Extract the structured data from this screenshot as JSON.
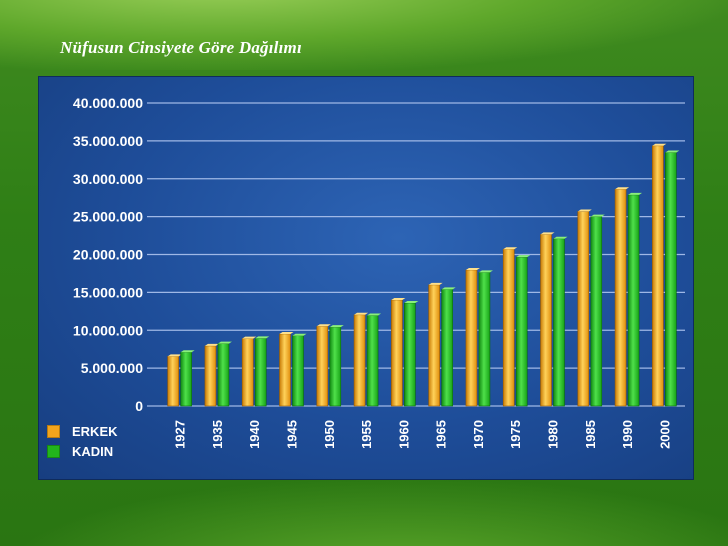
{
  "slide": {
    "title": "Nüfusun Cinsiyete Göre Dağılımı"
  },
  "colors": {
    "erkek": "#f2a41c",
    "kadin": "#22b51c",
    "gridline": "#9fb8e6",
    "text": "#ffffff"
  },
  "chart_data": {
    "type": "bar",
    "title": "",
    "xlabel": "",
    "ylabel": "",
    "categories": [
      "1927",
      "1935",
      "1940",
      "1945",
      "1950",
      "1955",
      "1960",
      "1965",
      "1970",
      "1975",
      "1980",
      "1985",
      "1990",
      "2000"
    ],
    "series": [
      {
        "name": "ERKEK",
        "values": [
          6550000,
          7930000,
          8900000,
          9510000,
          10520000,
          12040000,
          14000000,
          15990000,
          17960000,
          20700000,
          22650000,
          25670000,
          28610000,
          34350000
        ]
      },
      {
        "name": "KADIN",
        "values": [
          7100000,
          8230000,
          8920000,
          9280000,
          10420000,
          11940000,
          13600000,
          15400000,
          17640000,
          19650000,
          22080000,
          25000000,
          27870000,
          33460000
        ]
      }
    ],
    "ylim": [
      0,
      40000000
    ],
    "yticks": [
      "0",
      "5.000.000",
      "10.000.000",
      "15.000.000",
      "20.000.000",
      "25.000.000",
      "30.000.000",
      "35.000.000",
      "40.000.000"
    ],
    "ytick_values": [
      0,
      5000000,
      10000000,
      15000000,
      20000000,
      25000000,
      30000000,
      35000000,
      40000000
    ],
    "grid": true,
    "legend_position": "bottom-left"
  }
}
